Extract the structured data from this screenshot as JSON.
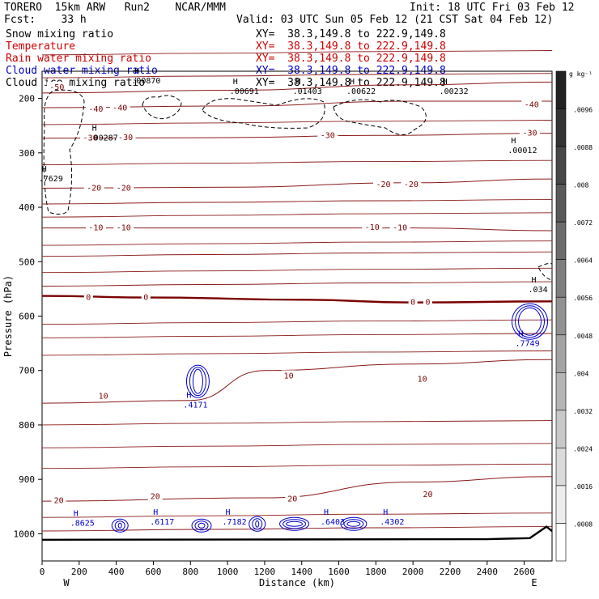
{
  "header": {
    "model_line": "TORERO  15km ARW   Run2    NCAR/MMM",
    "init": "Init: 18 UTC Fri 03 Feb 12",
    "fcst": "Fcst:    33 h",
    "valid": "Valid: 03 UTC Sun 05 Feb 12 (21 CST Sat 04 Feb 12)"
  },
  "fields": [
    {
      "name": "Snow mixing ratio",
      "xy": "XY=  38.3,149.8 to 222.9,149.8",
      "color": "#000000"
    },
    {
      "name": "Temperature",
      "xy": "XY=  38.3,149.8 to 222.9,149.8",
      "color": "#cc0000"
    },
    {
      "name": "Rain water mixing ratio",
      "xy": "XY=  38.3,149.8 to 222.9,149.8",
      "color": "#cc0000"
    },
    {
      "name": "Cloud water mixing ratio",
      "xy": "XY=  38.3,149.8 to 222.9,149.8",
      "color": "#0000cc"
    },
    {
      "name": "Cloud ice mixing ratio",
      "xy": "XY=  38.3,149.8 to 222.9,149.8",
      "color": "#000000"
    }
  ],
  "colors": {
    "isotherm": "#8b1a1a",
    "freezing": "#7a0000",
    "cloud_water": "#0000cc",
    "snow": "#000000",
    "topography": "#000000"
  },
  "chart_data": {
    "type": "cross-section contour",
    "xlabel": "Distance (km)",
    "ylabel": "Pressure (hPa)",
    "xlim": [
      0,
      2750
    ],
    "ylim_hpa": [
      150,
      1050
    ],
    "x_ticks": [
      0,
      200,
      400,
      600,
      800,
      1000,
      1200,
      1400,
      1600,
      1800,
      2000,
      2200,
      2400,
      2600
    ],
    "y_ticks": [
      200,
      300,
      400,
      500,
      600,
      700,
      800,
      900,
      1000
    ],
    "endpoints": {
      "left": "W",
      "right": "E"
    },
    "isotherms": [
      {
        "label": "-50",
        "points": [
          [
            0,
            190
          ],
          [
            1000,
            185
          ],
          [
            2000,
            175
          ],
          [
            2750,
            170
          ]
        ]
      },
      {
        "label": "-40",
        "points": [
          [
            0,
            217
          ],
          [
            1000,
            214
          ],
          [
            2000,
            205
          ],
          [
            2750,
            205
          ]
        ]
      },
      {
        "label": "-30",
        "points": [
          [
            0,
            273
          ],
          [
            1000,
            272
          ],
          [
            1800,
            268
          ],
          [
            2750,
            264
          ]
        ]
      },
      {
        "label": "-20",
        "points": [
          [
            0,
            365
          ],
          [
            1000,
            363
          ],
          [
            2000,
            355
          ],
          [
            2750,
            348
          ]
        ]
      },
      {
        "label": "-10",
        "points": [
          [
            0,
            438
          ],
          [
            1200,
            438
          ],
          [
            2000,
            438
          ],
          [
            2750,
            443
          ]
        ]
      },
      {
        "label": "0",
        "points": [
          [
            0,
            563
          ],
          [
            600,
            566
          ],
          [
            1400,
            570
          ],
          [
            2000,
            575
          ],
          [
            2750,
            573
          ]
        ]
      },
      {
        "label": "10",
        "points": [
          [
            0,
            760
          ],
          [
            800,
            755
          ],
          [
            1200,
            700
          ],
          [
            2000,
            688
          ],
          [
            2750,
            680
          ]
        ]
      },
      {
        "label": "20",
        "points": [
          [
            0,
            940
          ],
          [
            1200,
            934
          ],
          [
            2000,
            905
          ],
          [
            2750,
            895
          ]
        ]
      }
    ],
    "isotherm_labels": [
      {
        "text": "-50",
        "x": 80,
        "p": 180
      },
      {
        "text": "-40",
        "x": 290,
        "p": 220
      },
      {
        "text": "-40",
        "x": 420,
        "p": 218
      },
      {
        "text": "-40",
        "x": 2640,
        "p": 212
      },
      {
        "text": "-30",
        "x": 260,
        "p": 273
      },
      {
        "text": "-30",
        "x": 450,
        "p": 272
      },
      {
        "text": "-30",
        "x": 1540,
        "p": 268
      },
      {
        "text": "-30",
        "x": 2630,
        "p": 264
      },
      {
        "text": "-20",
        "x": 280,
        "p": 365
      },
      {
        "text": "-20",
        "x": 440,
        "p": 365
      },
      {
        "text": "-20",
        "x": 1840,
        "p": 358
      },
      {
        "text": "-20",
        "x": 1990,
        "p": 358
      },
      {
        "text": "-10",
        "x": 290,
        "p": 438
      },
      {
        "text": "-10",
        "x": 440,
        "p": 438
      },
      {
        "text": "-10",
        "x": 1780,
        "p": 437
      },
      {
        "text": "-10",
        "x": 1930,
        "p": 438
      },
      {
        "text": "0",
        "x": 250,
        "p": 566
      },
      {
        "text": "0",
        "x": 560,
        "p": 566
      },
      {
        "text": "0",
        "x": 2000,
        "p": 575
      },
      {
        "text": "0",
        "x": 2080,
        "p": 575
      },
      {
        "text": "10",
        "x": 330,
        "p": 747
      },
      {
        "text": "10",
        "x": 1330,
        "p": 710
      },
      {
        "text": "10",
        "x": 2050,
        "p": 716
      },
      {
        "text": "20",
        "x": 90,
        "p": 939
      },
      {
        "text": "20",
        "x": 610,
        "p": 932
      },
      {
        "text": "20",
        "x": 1350,
        "p": 936
      },
      {
        "text": "20",
        "x": 2080,
        "p": 928
      }
    ],
    "maxima": [
      {
        "field": "Snow mixing ratio",
        "value": ".00870",
        "x": 560,
        "p": 172
      },
      {
        "field": "Snow mixing ratio",
        "value": ".00691",
        "x": 1090,
        "p": 192
      },
      {
        "field": "Snow mixing ratio",
        "value": ".01403",
        "x": 1430,
        "p": 192
      },
      {
        "field": "Snow mixing ratio",
        "value": ".00622",
        "x": 1720,
        "p": 192
      },
      {
        "field": "Snow mixing ratio",
        "value": ".00232",
        "x": 2220,
        "p": 192
      },
      {
        "field": "Snow mixing ratio",
        "value": ".00287",
        "x": 330,
        "p": 277
      },
      {
        "field": "Snow mixing ratio",
        "value": ".00012",
        "x": 2590,
        "p": 300
      },
      {
        "field": "Snow mixing ratio",
        "value": ".7629",
        "x": 60,
        "p": 352
      },
      {
        "field": "Snow mixing ratio",
        "value": ".034",
        "x": 2700,
        "p": 556
      },
      {
        "field": "Cloud water mixing ratio",
        "value": ".7749",
        "x": 2630,
        "p": 655
      },
      {
        "field": "Cloud water mixing ratio",
        "value": ".4171",
        "x": 840,
        "p": 768
      },
      {
        "field": "Cloud water mixing ratio",
        "value": ".8625",
        "x": 230,
        "p": 985
      },
      {
        "field": "Cloud water mixing ratio",
        "value": ".6117",
        "x": 660,
        "p": 983
      },
      {
        "field": "Cloud water mixing ratio",
        "value": ".7182",
        "x": 1050,
        "p": 983
      },
      {
        "field": "Cloud water mixing ratio",
        "value": ".6403",
        "x": 1580,
        "p": 983
      },
      {
        "field": "Cloud water mixing ratio",
        "value": ".4302",
        "x": 1900,
        "p": 983
      }
    ],
    "colorbar": {
      "unit": "g kg⁻¹",
      "ticks": [
        ".0096",
        ".0088",
        ".008",
        ".0072",
        ".0064",
        ".0056",
        ".0048",
        ".004",
        ".0032",
        ".0024",
        ".0016",
        ".0008"
      ],
      "from_color": "#222222",
      "to_color": "#ffffff"
    }
  }
}
